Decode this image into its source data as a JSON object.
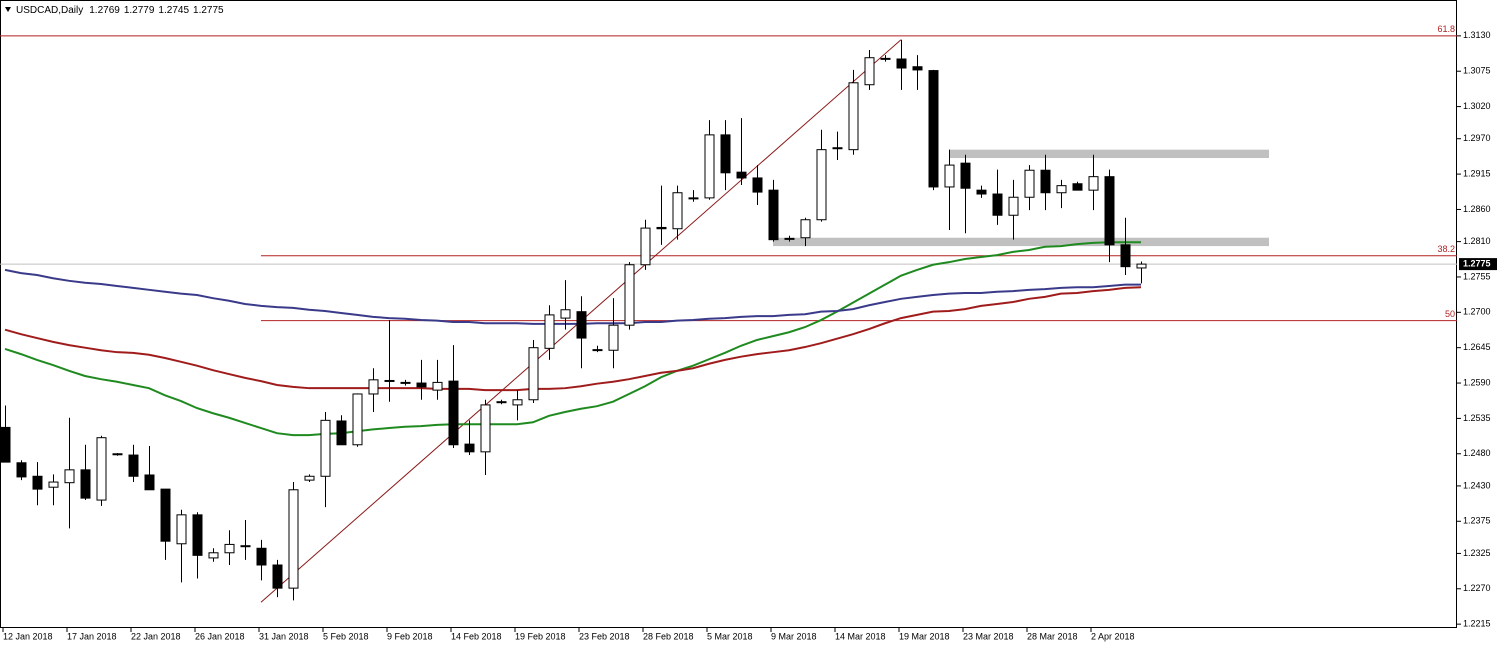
{
  "chart_data": {
    "type": "candlestick",
    "title": "USDCAD,Daily",
    "categories": [
      "12 Jan 2018",
      null,
      null,
      null,
      "17 Jan 2018",
      null,
      null,
      null,
      "22 Jan 2018",
      null,
      null,
      null,
      "26 Jan 2018",
      null,
      null,
      null,
      "31 Jan 2018",
      null,
      null,
      null,
      "5 Feb 2018",
      null,
      null,
      null,
      "9 Feb 2018",
      null,
      null,
      null,
      "14 Feb 2018",
      null,
      null,
      null,
      "19 Feb 2018",
      null,
      null,
      null,
      "23 Feb 2018",
      null,
      null,
      null,
      "28 Feb 2018",
      null,
      null,
      null,
      "5 Mar 2018",
      null,
      null,
      null,
      "9 Mar 2018",
      null,
      null,
      null,
      "14 Mar 2018",
      null,
      null,
      null,
      "19 Mar 2018",
      null,
      null,
      null,
      "23 Mar 2018",
      null,
      null,
      null,
      "28 Mar 2018",
      null,
      null,
      null,
      "2 Apr 2018",
      null,
      null,
      null
    ],
    "open": [
      1.2521,
      1.2466,
      1.2445,
      1.2428,
      1.2435,
      1.2455,
      1.2408,
      1.248,
      1.2478,
      1.2447,
      1.2425,
      1.234,
      1.2385,
      1.2318,
      1.2326,
      1.2337,
      1.2333,
      1.2307,
      1.2271,
      1.2439,
      1.2445,
      1.2531,
      1.2494,
      1.2573,
      1.2594,
      1.2591,
      1.259,
      1.2579,
      1.2593,
      1.2495,
      1.2483,
      1.2561,
      1.2556,
      1.2564,
      1.2644,
      1.2691,
      1.2701,
      1.2642,
      1.2641,
      1.268,
      1.2774,
      1.2832,
      1.283,
      1.2878,
      1.2878,
      1.2976,
      1.2918,
      1.2909,
      1.289,
      1.2815,
      1.2816,
      1.2844,
      1.2956,
      1.2953,
      1.3054,
      1.3095,
      1.3094,
      1.3082,
      1.3076,
      1.2895,
      1.2932,
      1.289,
      1.2884,
      1.2851,
      1.2879,
      1.2921,
      1.2886,
      1.29,
      1.289,
      1.2911,
      1.2805,
      1.2769
    ],
    "high": [
      1.2555,
      1.247,
      1.2467,
      1.2448,
      1.2536,
      1.2494,
      1.2508,
      1.2481,
      1.2494,
      1.2492,
      1.2425,
      1.2393,
      1.2389,
      1.2333,
      1.2361,
      1.2377,
      1.2346,
      1.2315,
      1.2436,
      1.2448,
      1.2545,
      1.254,
      1.2574,
      1.2613,
      1.2688,
      1.2595,
      1.2626,
      1.2626,
      1.2649,
      1.2532,
      1.2564,
      1.2564,
      1.2579,
      1.2657,
      1.2711,
      1.275,
      1.2725,
      1.2648,
      1.2722,
      1.2778,
      1.2844,
      1.2897,
      1.2897,
      1.289,
      1.2999,
      1.2999,
      1.3002,
      1.2929,
      1.2906,
      1.2819,
      1.2847,
      1.2984,
      1.2981,
      1.3077,
      1.3108,
      1.31,
      1.3124,
      1.31,
      1.3077,
      1.2953,
      1.2945,
      1.2897,
      1.2922,
      1.2906,
      1.2929,
      1.2945,
      1.2906,
      1.2903,
      1.2945,
      1.2922,
      1.2847,
      1.2779
    ],
    "low": [
      1.2467,
      1.2439,
      1.24,
      1.24,
      1.2364,
      1.2408,
      1.2399,
      1.2477,
      1.2436,
      1.2424,
      1.2315,
      1.228,
      1.2286,
      1.2312,
      1.2307,
      1.2315,
      1.2283,
      1.2257,
      1.2252,
      1.2436,
      1.2397,
      1.2494,
      1.2491,
      1.2545,
      1.2561,
      1.2586,
      1.2564,
      1.2564,
      1.2489,
      1.2478,
      1.2447,
      1.2557,
      1.2532,
      1.2559,
      1.2626,
      1.2673,
      1.2613,
      1.2638,
      1.2613,
      1.2673,
      1.2766,
      1.2805,
      1.2813,
      1.2872,
      1.2875,
      1.289,
      1.2898,
      1.2867,
      1.281,
      1.281,
      1.2803,
      1.2841,
      1.2937,
      1.2945,
      1.3046,
      1.309,
      1.3046,
      1.3046,
      1.289,
      1.2828,
      1.2823,
      1.2878,
      1.2836,
      1.2813,
      1.2859,
      1.2859,
      1.2862,
      1.289,
      1.2859,
      1.2778,
      1.2758,
      1.2745
    ],
    "close": [
      1.2467,
      1.2444,
      1.2425,
      1.2436,
      1.2455,
      1.2411,
      1.2505,
      1.2479,
      1.2445,
      1.2424,
      1.2344,
      1.2385,
      1.2322,
      1.2326,
      1.2339,
      1.2336,
      1.2307,
      1.2271,
      1.2424,
      1.2445,
      1.2532,
      1.2494,
      1.2573,
      1.2595,
      1.2593,
      1.259,
      1.2584,
      1.2591,
      1.2494,
      1.2483,
      1.2556,
      1.256,
      1.2564,
      1.2645,
      1.2696,
      1.2704,
      1.266,
      1.2641,
      1.268,
      1.2774,
      1.2831,
      1.283,
      1.2886,
      1.2877,
      1.2976,
      1.2917,
      1.2909,
      1.2887,
      1.2813,
      1.2814,
      1.2844,
      1.2953,
      1.2955,
      1.3057,
      1.3096,
      1.3094,
      1.308,
      1.3077,
      1.2895,
      1.2929,
      1.2893,
      1.2884,
      1.2851,
      1.2879,
      1.2921,
      1.2886,
      1.2897,
      1.289,
      1.2911,
      1.2805,
      1.2771,
      1.2775
    ],
    "up_color": "#ffffff",
    "down_color": "#000000",
    "series": [
      {
        "color": "#1f8a1f",
        "values": [
          1.2643,
          1.2635,
          1.2626,
          1.2618,
          1.2609,
          1.2601,
          1.2596,
          1.2592,
          1.2587,
          1.2582,
          1.2571,
          1.2562,
          1.2551,
          1.2543,
          1.2536,
          1.2528,
          1.252,
          1.2512,
          1.2509,
          1.2509,
          1.2511,
          1.2512,
          1.2515,
          1.2518,
          1.252,
          1.2522,
          1.2523,
          1.2525,
          1.2526,
          1.2526,
          1.2526,
          1.2526,
          1.2526,
          1.2529,
          1.2539,
          1.2545,
          1.255,
          1.2554,
          1.2561,
          1.2573,
          1.2585,
          1.2599,
          1.2609,
          1.2617,
          1.2627,
          1.2637,
          1.2648,
          1.2657,
          1.2663,
          1.2669,
          1.2677,
          1.2688,
          1.2701,
          1.2715,
          1.2729,
          1.2743,
          1.2757,
          1.2766,
          1.2774,
          1.2778,
          1.2783,
          1.2786,
          1.2789,
          1.2794,
          1.2797,
          1.2802,
          1.2803,
          1.2806,
          1.2808,
          1.2809,
          1.2809,
          1.2809
        ]
      },
      {
        "color": "#a01c1c",
        "values": [
          1.2673,
          1.2666,
          1.266,
          1.2654,
          1.2649,
          1.2645,
          1.2641,
          1.2638,
          1.2637,
          1.2634,
          1.2629,
          1.2623,
          1.2617,
          1.261,
          1.2604,
          1.2598,
          1.2593,
          1.2587,
          1.2584,
          1.2582,
          1.2582,
          1.2582,
          1.2582,
          1.2582,
          1.2582,
          1.2582,
          1.2582,
          1.2581,
          1.2581,
          1.2581,
          1.2579,
          1.2579,
          1.2579,
          1.2581,
          1.2581,
          1.2582,
          1.2585,
          1.2589,
          1.2592,
          1.2596,
          1.2601,
          1.2606,
          1.2609,
          1.2613,
          1.262,
          1.2626,
          1.2631,
          1.2635,
          1.2638,
          1.2641,
          1.2646,
          1.2652,
          1.2659,
          1.2666,
          1.2674,
          1.2683,
          1.2691,
          1.2696,
          1.2701,
          1.2702,
          1.2705,
          1.271,
          1.2713,
          1.2716,
          1.2721,
          1.2724,
          1.2729,
          1.273,
          1.2733,
          1.2735,
          1.2738,
          1.2739
        ]
      },
      {
        "color": "#3a3a8a",
        "values": [
          1.2766,
          1.2761,
          1.2758,
          1.2753,
          1.2749,
          1.2746,
          1.2744,
          1.2741,
          1.2738,
          1.2735,
          1.2732,
          1.2729,
          1.2727,
          1.2722,
          1.2718,
          1.2713,
          1.271,
          1.2708,
          1.2707,
          1.2704,
          1.2702,
          1.2699,
          1.2696,
          1.2693,
          1.2691,
          1.269,
          1.2688,
          1.2687,
          1.2685,
          1.2685,
          1.2683,
          1.2683,
          1.2683,
          1.2682,
          1.2682,
          1.2682,
          1.2682,
          1.2683,
          1.2683,
          1.2683,
          1.2685,
          1.2685,
          1.2687,
          1.2688,
          1.269,
          1.2691,
          1.2693,
          1.2694,
          1.2694,
          1.2696,
          1.2697,
          1.2701,
          1.2702,
          1.2705,
          1.2711,
          1.2716,
          1.2721,
          1.2724,
          1.2727,
          1.2729,
          1.273,
          1.273,
          1.2732,
          1.2733,
          1.2735,
          1.2736,
          1.2738,
          1.2739,
          1.2739,
          1.2741,
          1.2743,
          1.2743
        ]
      }
    ],
    "fibonacci": [
      {
        "label": "61.8",
        "value": 1.313
      },
      {
        "label": "38.2",
        "value": 1.2788
      },
      {
        "label": "50",
        "value": 1.2687
      }
    ],
    "fib_color": "#b22222",
    "trendline": {
      "x": [
        16,
        56
      ],
      "y": [
        1.2249,
        1.3124
      ],
      "color": "#8b1a1a"
    },
    "zones": [
      {
        "x": [
          59,
          79
        ],
        "y": [
          1.2953,
          1.294
        ]
      },
      {
        "x": [
          48,
          79
        ],
        "y": [
          1.2816,
          1.2803
        ]
      }
    ],
    "zone_color": "#c0c0c0",
    "ylim": [
      1.2209,
      1.3178
    ],
    "yticks": [
      {
        "value": 1.313,
        "label": "1.3130"
      },
      1.3075,
      {
        "value": 1.302,
        "label": "1.3020"
      },
      {
        "value": 1.297,
        "label": "1.2970"
      },
      1.2915,
      {
        "value": 1.286,
        "label": "1.2860"
      },
      {
        "value": 1.281,
        "label": "1.2810"
      },
      1.2755,
      {
        "value": 1.27,
        "label": "1.2700"
      },
      1.2645,
      {
        "value": 1.259,
        "label": "1.2590"
      },
      1.2535,
      {
        "value": 1.248,
        "label": "1.2480"
      },
      {
        "value": 1.243,
        "label": "1.2430"
      },
      1.2375,
      1.2325,
      {
        "value": 1.227,
        "label": "1.2270"
      },
      1.2215
    ]
  }
}
